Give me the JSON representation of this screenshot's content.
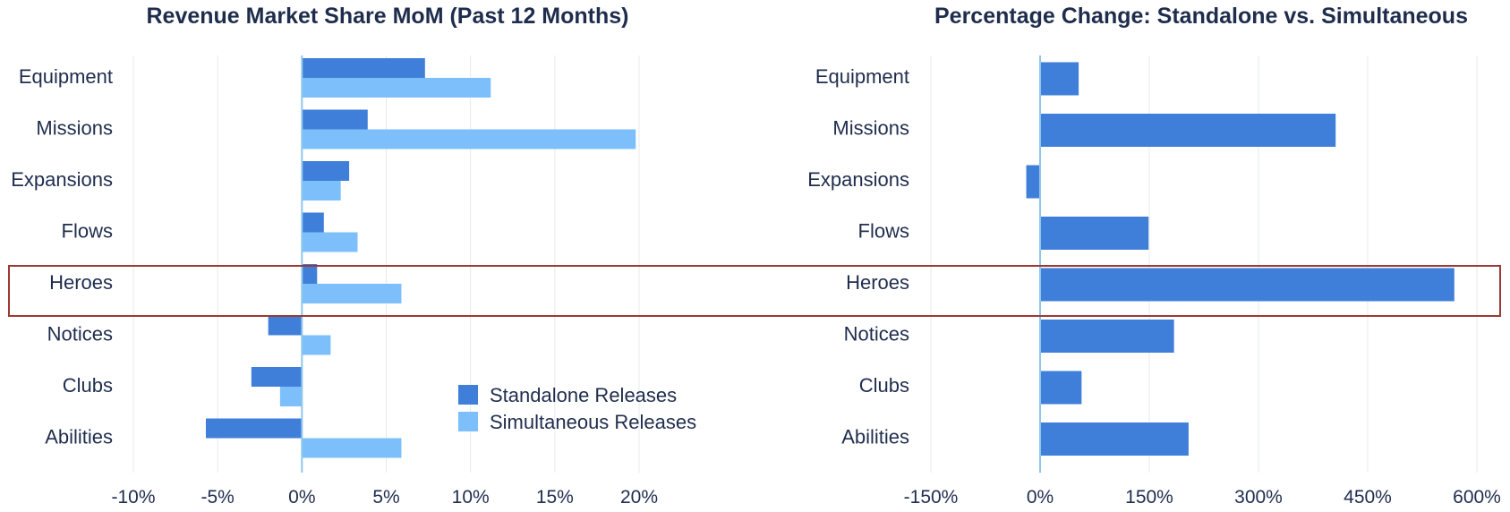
{
  "chart_data": [
    {
      "type": "bar",
      "orientation": "horizontal",
      "title": "Revenue Market Share MoM (Past 12 Months)",
      "categories": [
        "Equipment",
        "Missions",
        "Expansions",
        "Flows",
        "Heroes",
        "Notices",
        "Clubs",
        "Abilities"
      ],
      "series": [
        {
          "name": "Standalone Releases",
          "values": [
            7.3,
            3.9,
            2.8,
            1.3,
            0.9,
            -2.0,
            -3.0,
            -5.7
          ],
          "color": "#3f7fd9"
        },
        {
          "name": "Simultaneous Releases",
          "values": [
            11.2,
            19.8,
            2.3,
            3.3,
            5.9,
            1.7,
            -1.3,
            5.9
          ],
          "color": "#7dbffa"
        }
      ],
      "xlim": [
        -10,
        20
      ],
      "ticks": [
        "-10%",
        "-5%",
        "0%",
        "5%",
        "10%",
        "15%",
        "20%"
      ],
      "tick_values": [
        -10,
        -5,
        0,
        5,
        10,
        15,
        20
      ],
      "legend": "lower-right",
      "highlight_category": "Heroes"
    },
    {
      "type": "bar",
      "orientation": "horizontal",
      "title": "Percentage Change: Standalone vs. Simultaneous",
      "categories": [
        "Equipment",
        "Missions",
        "Expansions",
        "Flows",
        "Heroes",
        "Notices",
        "Clubs",
        "Abilities"
      ],
      "series": [
        {
          "values": [
            53,
            406,
            -19,
            149,
            569,
            184,
            57,
            204
          ],
          "color": "#3f7fd9"
        }
      ],
      "xlim": [
        -150,
        600
      ],
      "ticks": [
        "-150%",
        "0%",
        "150%",
        "300%",
        "450%",
        "600%"
      ],
      "tick_values": [
        -150,
        0,
        150,
        300,
        450,
        600
      ],
      "highlight_category": "Heroes"
    }
  ],
  "colors": {
    "text": "#1f2d4d",
    "grid": "#e6e9ee",
    "zero_line": "#8ec6ec",
    "highlight_border": "#9b3a32"
  }
}
